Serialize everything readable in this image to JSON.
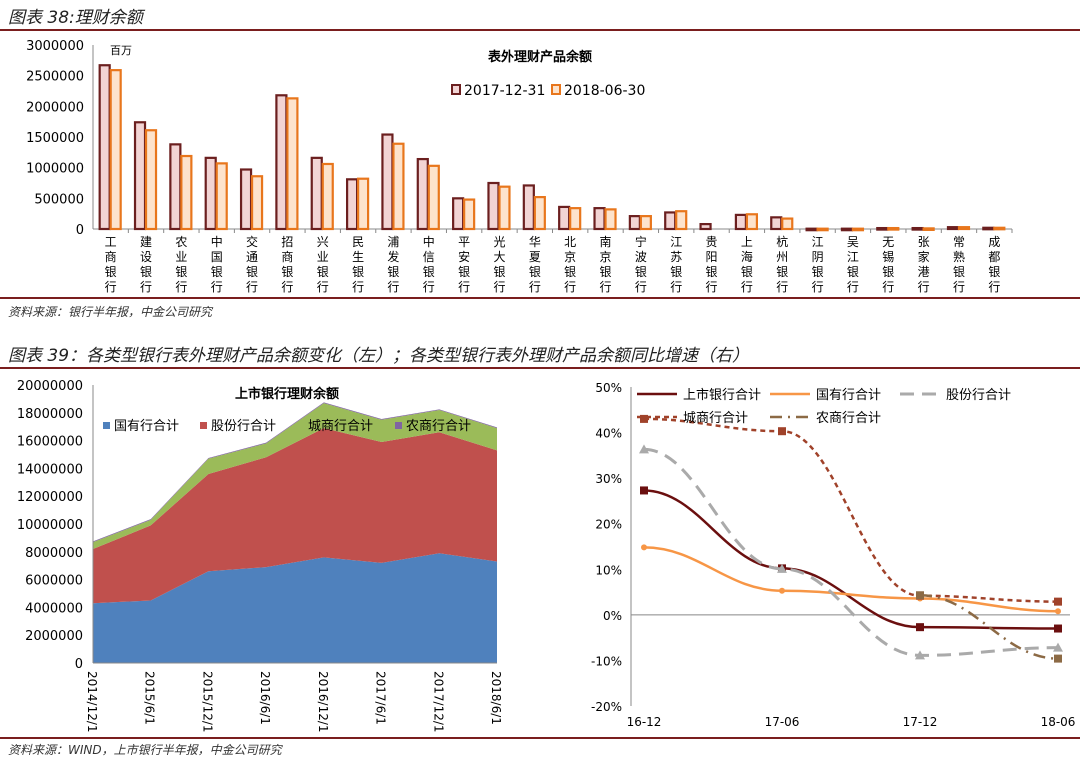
{
  "fig38": {
    "title": "图表 38:理财余额",
    "source": "资料来源：银行半年报，中金公司研究"
  },
  "fig39": {
    "title": "图表 39：各类型银行表外理财产品余额变化（左）；各类型银行表外理财产品余额同比增速（右）",
    "source": "资料来源：WIND，上市银行半年报，中金公司研究"
  },
  "colors": {
    "rule": "#7a1e1e",
    "s2017": "#6b1f1f",
    "s2018": "#e8761c",
    "fill2017": "#f2d4d4",
    "fill2018": "#fde3cc",
    "guoyou": "#4f81bd",
    "gufen": "#c0504d",
    "chengshang": "#9bbb59",
    "nongshang": "#8064a2"
  },
  "chart_data": [
    {
      "type": "bar",
      "title": "表外理财产品余额",
      "unit_label": "百万",
      "ylim": [
        0,
        3000000
      ],
      "yticks": [
        "0",
        "500000",
        "1000000",
        "1500000",
        "2000000",
        "2500000",
        "3000000"
      ],
      "categories": [
        "工商银行",
        "建设银行",
        "农业银行",
        "中国银行",
        "交通银行",
        "招商银行",
        "兴业银行",
        "民生银行",
        "浦发银行",
        "中信银行",
        "平安银行",
        "光大银行",
        "华夏银行",
        "北京银行",
        "南京银行",
        "宁波银行",
        "江苏银行",
        "贵阳银行",
        "上海银行",
        "杭州银行",
        "江阴银行",
        "吴江银行",
        "无锡银行",
        "张家港行",
        "常熟银行",
        "成都银行"
      ],
      "series": [
        {
          "name": "2017-12-31",
          "values": [
            2670000,
            1740000,
            1380000,
            1160000,
            970000,
            2180000,
            1160000,
            810000,
            1540000,
            1140000,
            500000,
            750000,
            710000,
            360000,
            340000,
            210000,
            270000,
            80000,
            230000,
            190000,
            5000,
            5000,
            15000,
            15000,
            30000,
            20000
          ]
        },
        {
          "name": "2018-06-30",
          "values": [
            2590000,
            1610000,
            1190000,
            1070000,
            860000,
            2130000,
            1060000,
            820000,
            1390000,
            1030000,
            480000,
            690000,
            520000,
            340000,
            320000,
            210000,
            290000,
            0,
            240000,
            170000,
            5000,
            5000,
            15000,
            10000,
            30000,
            20000
          ]
        }
      ],
      "legend": "top-center"
    },
    {
      "type": "area",
      "stacked": true,
      "title": "上市银行理财余额",
      "ylim": [
        0,
        20000000
      ],
      "yticks": [
        "0",
        "2000000",
        "4000000",
        "6000000",
        "8000000",
        "10000000",
        "12000000",
        "14000000",
        "16000000",
        "18000000",
        "20000000"
      ],
      "categories": [
        "2014/12/1",
        "2015/6/1",
        "2015/12/1",
        "2016/6/1",
        "2016/12/1",
        "2017/6/1",
        "2017/12/1",
        "2018/6/1"
      ],
      "series": [
        {
          "name": "国有行合计",
          "values": [
            4300000,
            4500000,
            6600000,
            6900000,
            7600000,
            7200000,
            7900000,
            7300000
          ]
        },
        {
          "name": "股份行合计",
          "values": [
            3900000,
            5400000,
            7000000,
            7900000,
            9300000,
            8700000,
            8700000,
            8000000
          ]
        },
        {
          "name": "城商行合计",
          "values": [
            500000,
            400000,
            1100000,
            1000000,
            1800000,
            1600000,
            1600000,
            1600000
          ]
        },
        {
          "name": "农商行合计",
          "values": [
            50000,
            50000,
            50000,
            50000,
            50000,
            50000,
            50000,
            50000
          ]
        }
      ],
      "legend": "top"
    },
    {
      "type": "line",
      "ylim": [
        -20,
        50
      ],
      "yticks": [
        "-20%",
        "-10%",
        "0%",
        "10%",
        "20%",
        "30%",
        "40%",
        "50%"
      ],
      "categories": [
        "16-12",
        "17-06",
        "17-12",
        "18-06"
      ],
      "series": [
        {
          "name": "上市银行合计",
          "values": [
            27.3,
            10.2,
            -2.7,
            -3.0
          ]
        },
        {
          "name": "国有行合计",
          "values": [
            14.8,
            5.3,
            3.6,
            0.8
          ]
        },
        {
          "name": "股份行合计",
          "values": [
            36.3,
            10.1,
            -8.9,
            -7.2
          ]
        },
        {
          "name": "城商行合计",
          "values": [
            43.0,
            40.3,
            4.2,
            2.9
          ]
        },
        {
          "name": "农商行合计",
          "values": [
            null,
            null,
            4.3,
            -9.6
          ]
        }
      ],
      "legend": "top-left"
    }
  ]
}
